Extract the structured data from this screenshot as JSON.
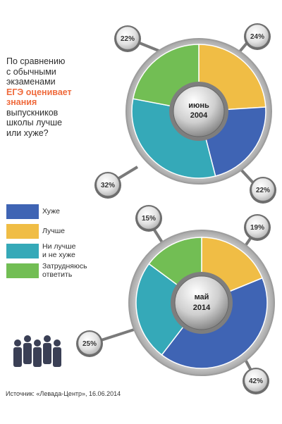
{
  "question": {
    "line1": "По сравнению",
    "line2": "с обычными",
    "line3": "экзаменами",
    "highlight1": "ЕГЭ оценивает",
    "highlight2": "знания",
    "line6": "выпускников",
    "line7": "школы лучше",
    "line8": "или хуже?"
  },
  "legend": [
    {
      "lines": [
        "Хуже"
      ],
      "color": "#3f64b4"
    },
    {
      "lines": [
        "Лучше"
      ],
      "color": "#f0bd45"
    },
    {
      "lines": [
        "Ни лучше",
        "и не хуже"
      ],
      "color": "#35a9b8"
    },
    {
      "lines": [
        "Затрудняюсь",
        "ответить"
      ],
      "color": "#72be54"
    }
  ],
  "source": "Источник: «Левада-Центр», 16.06.2014",
  "chart_data": [
    {
      "type": "pie",
      "center_label": [
        "июнь",
        "2004"
      ],
      "categories": [
        "Лучше",
        "Хуже",
        "Ни лучше и не хуже",
        "Затрудняюсь ответить"
      ],
      "values": [
        24,
        22,
        32,
        22
      ],
      "value_labels": [
        "24%",
        "22%",
        "32%",
        "22%"
      ],
      "colors": [
        "#f0bd45",
        "#3f64b4",
        "#35a9b8",
        "#72be54"
      ]
    },
    {
      "type": "pie",
      "center_label": [
        "май",
        "2014"
      ],
      "categories": [
        "Лучше",
        "Хуже",
        "Ни лучше и не хуже",
        "Затрудняюсь ответить"
      ],
      "values": [
        19,
        42,
        25,
        15
      ],
      "value_labels": [
        "19%",
        "42%",
        "25%",
        "15%"
      ],
      "colors": [
        "#f0bd45",
        "#3f64b4",
        "#35a9b8",
        "#72be54"
      ]
    }
  ]
}
